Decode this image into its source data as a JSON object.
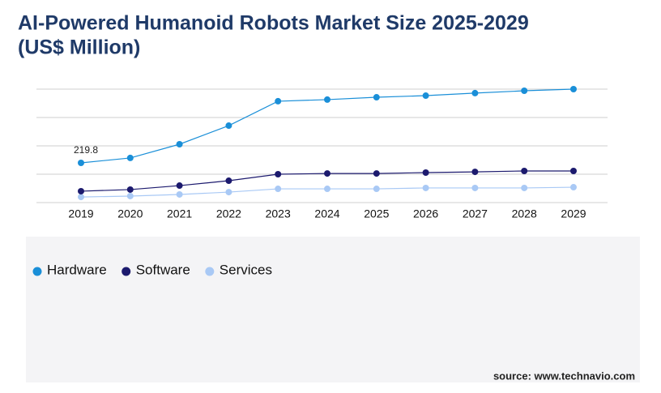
{
  "chart_data": {
    "type": "line",
    "title": "AI-Powered Humanoid Robots Market Size 2025-2029",
    "subtitle": "(US$ Million)",
    "categories": [
      "2019",
      "2020",
      "2021",
      "2022",
      "2023",
      "2024",
      "2025",
      "2026",
      "2027",
      "2028",
      "2029"
    ],
    "series": [
      {
        "name": "Hardware",
        "color": "#1a8fd8",
        "values": [
          219.8,
          247,
          323,
          426,
          561,
          570,
          583,
          592,
          606,
          619,
          628
        ],
        "value_labels": [
          "219.8",
          null,
          null,
          null,
          null,
          null,
          null,
          null,
          null,
          null,
          null
        ]
      },
      {
        "name": "Software",
        "color": "#1c1a6e",
        "values": [
          63,
          72,
          94,
          121,
          157,
          161,
          161,
          166,
          170,
          175,
          175
        ]
      },
      {
        "name": "Services",
        "color": "#a9c9f5",
        "values": [
          31,
          36,
          45,
          58,
          76,
          76,
          76,
          81,
          81,
          81,
          85
        ]
      }
    ],
    "ylim": [
      0,
      628
    ],
    "yticks": [
      0,
      157,
      314,
      471,
      628
    ],
    "grid": true,
    "source": "source: www.technavio.com"
  }
}
